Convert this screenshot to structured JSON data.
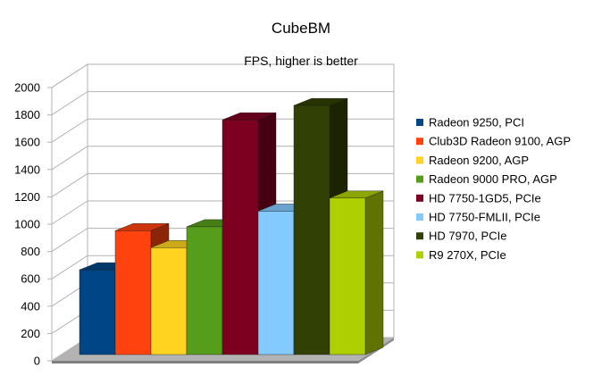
{
  "chart_data": {
    "type": "bar",
    "title": "CubeBM",
    "subtitle": "FPS, higher is better",
    "xlabel": "",
    "ylabel": "",
    "ylim": [
      0,
      2000
    ],
    "yticks": [
      0,
      200,
      400,
      600,
      800,
      1000,
      1200,
      1400,
      1600,
      1800,
      2000
    ],
    "grid": true,
    "legend_position": "right",
    "series": [
      {
        "name": "Radeon 9250, PCI",
        "value": 650,
        "color": "#004586"
      },
      {
        "name": "Club3D Radeon 9100, AGP",
        "value": 950,
        "color": "#ff420e"
      },
      {
        "name": "Radeon 9200, AGP",
        "value": 820,
        "color": "#ffd320"
      },
      {
        "name": "Radeon 9000 PRO, AGP",
        "value": 980,
        "color": "#579d1c"
      },
      {
        "name": "HD 7750-1GD5, PCIe",
        "value": 1800,
        "color": "#7e0021"
      },
      {
        "name": "HD 7750-FMLII, PCIe",
        "value": 1100,
        "color": "#83caff"
      },
      {
        "name": "HD 7970, PCIe",
        "value": 1910,
        "color": "#314004"
      },
      {
        "name": "R9 270X, PCIe",
        "value": 1200,
        "color": "#aecf00"
      }
    ]
  }
}
